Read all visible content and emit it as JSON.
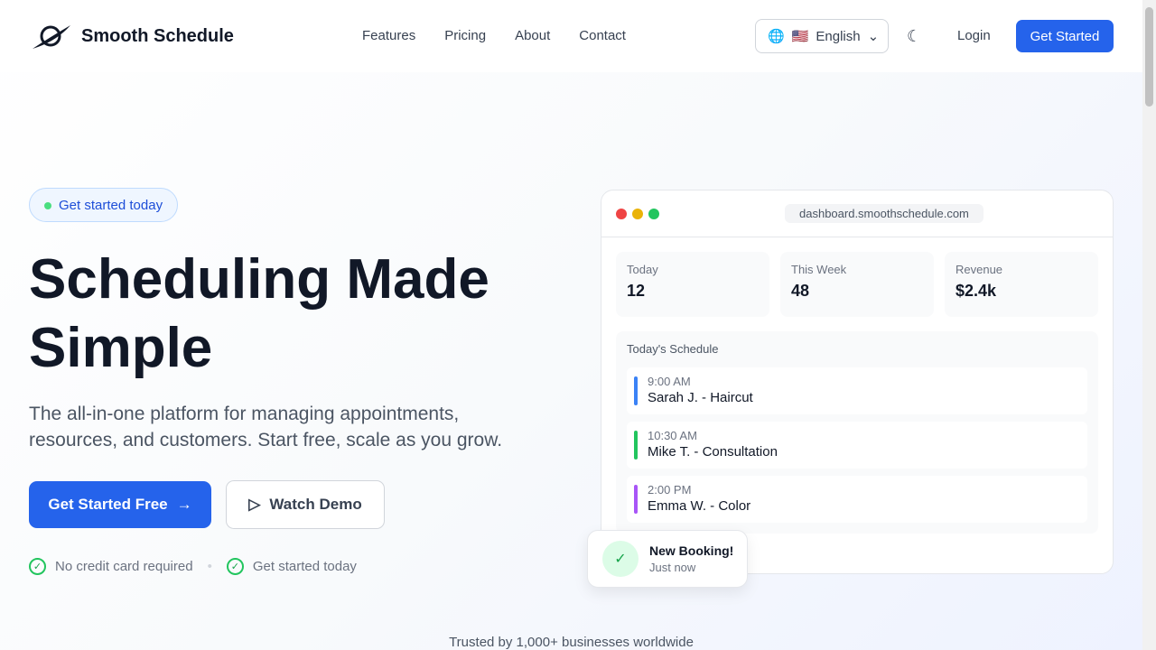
{
  "brand": "Smooth Schedule",
  "nav": {
    "links": [
      "Features",
      "Pricing",
      "About",
      "Contact"
    ],
    "language": "English",
    "login": "Login",
    "get_started": "Get Started"
  },
  "hero": {
    "badge": "Get started today",
    "title": "Scheduling Made Simple",
    "subtitle": "The all-in-one platform for managing appointments, resources, and customers. Start free, scale as you grow.",
    "cta_primary": "Get Started Free",
    "cta_secondary": "Watch Demo",
    "checks": [
      "No credit card required",
      "Get started today"
    ]
  },
  "dashboard": {
    "url": "dashboard.smoothschedule.com",
    "stats": [
      {
        "label": "Today",
        "value": "12"
      },
      {
        "label": "This Week",
        "value": "48"
      },
      {
        "label": "Revenue",
        "value": "$2.4k"
      }
    ],
    "schedule_title": "Today's Schedule",
    "schedule": [
      {
        "time": "9:00 AM",
        "name": "Sarah J. - Haircut",
        "color": "#3b82f6"
      },
      {
        "time": "10:30 AM",
        "name": "Mike T. - Consultation",
        "color": "#22c55e"
      },
      {
        "time": "2:00 PM",
        "name": "Emma W. - Color",
        "color": "#a855f7"
      }
    ]
  },
  "toast": {
    "title": "New Booking!",
    "time": "Just now"
  },
  "trust": "Trusted by 1,000+ businesses worldwide"
}
